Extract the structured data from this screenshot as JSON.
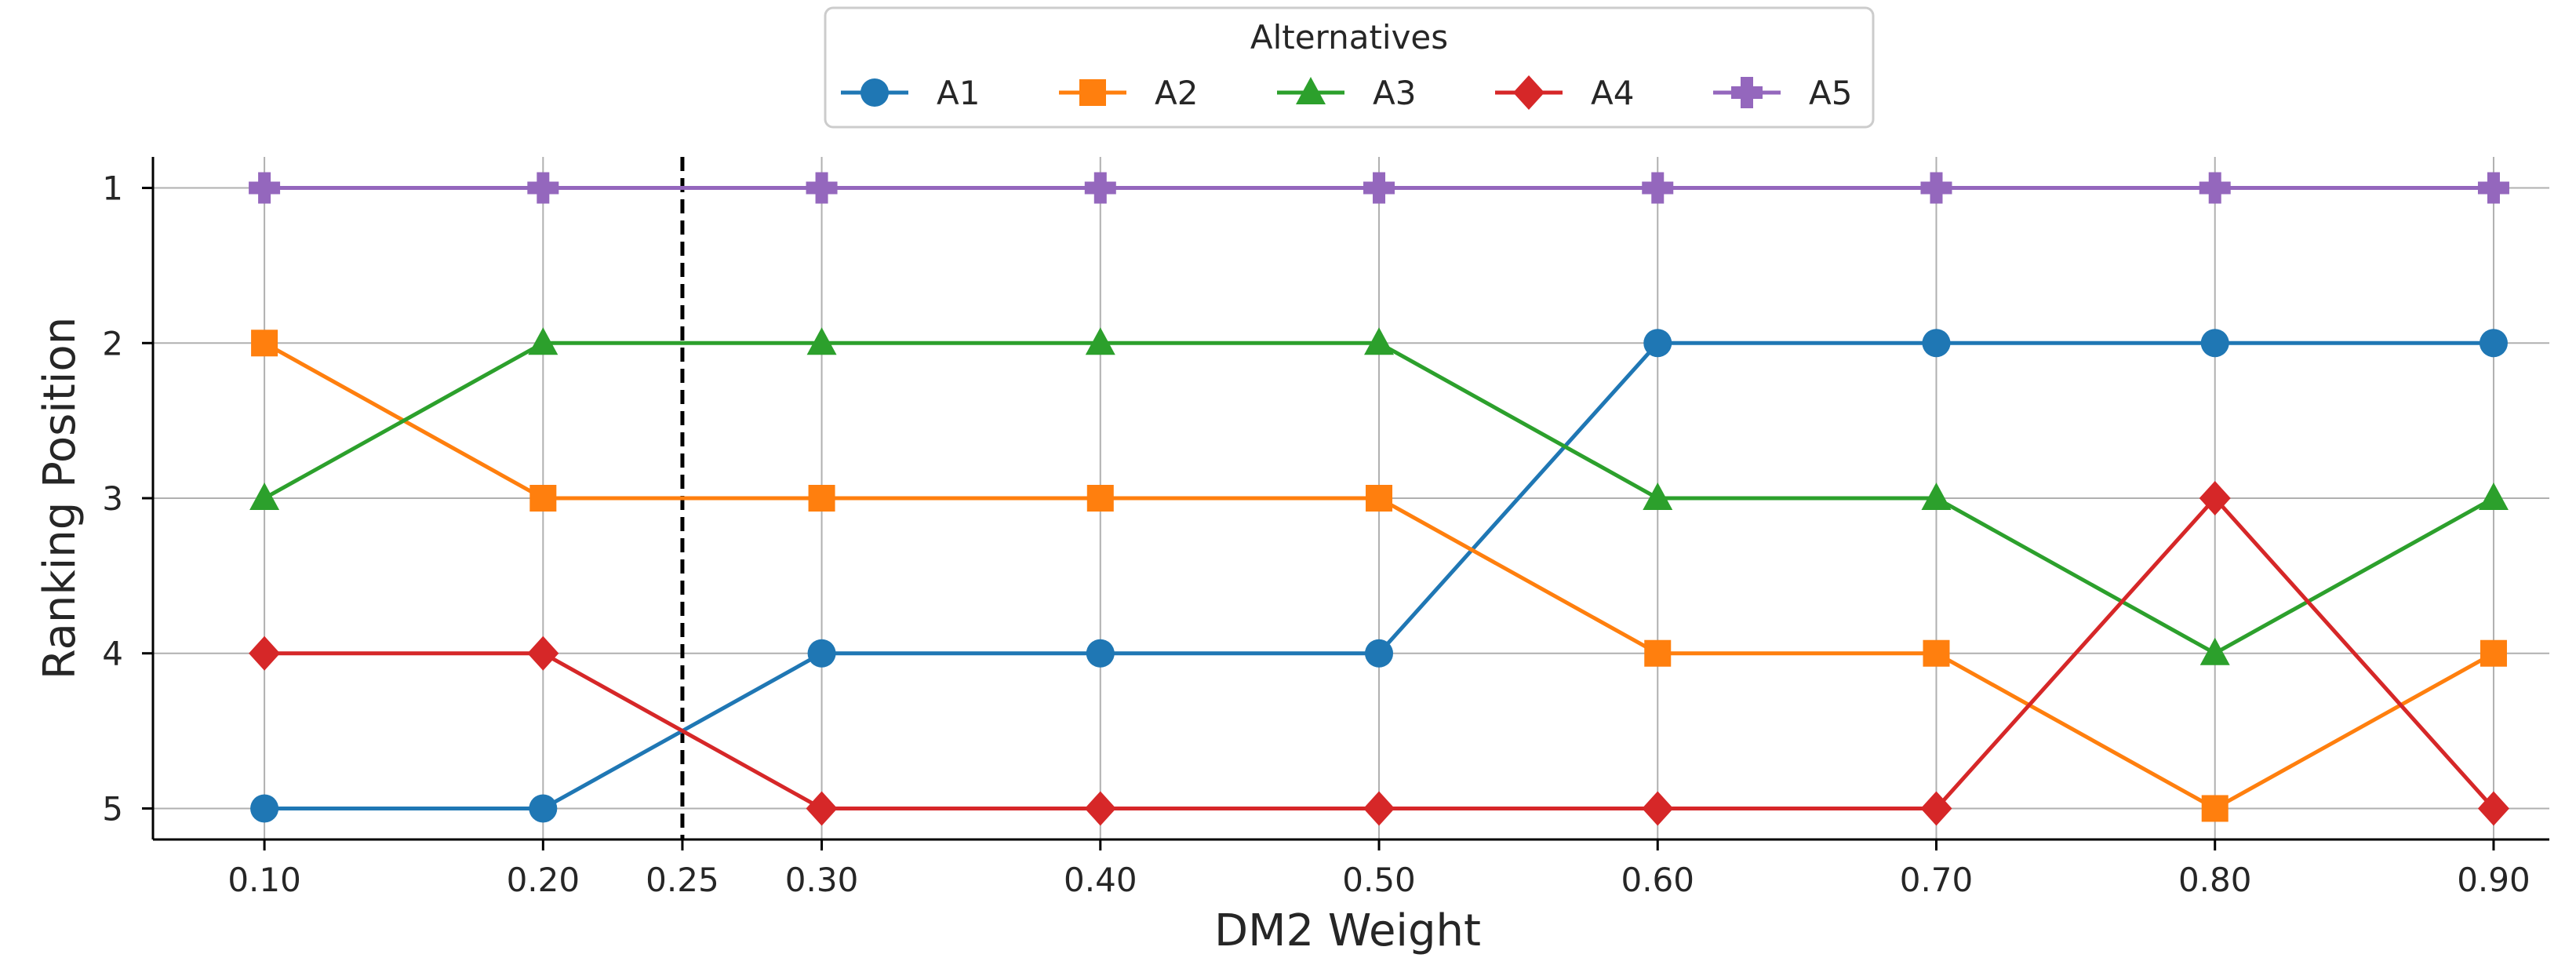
{
  "chart_data": {
    "type": "line",
    "title": "",
    "xlabel": "DM2 Weight",
    "ylabel": "Ranking Position",
    "x": [
      0.1,
      0.2,
      0.3,
      0.4,
      0.5,
      0.6,
      0.7,
      0.8,
      0.9
    ],
    "x_ticks": [
      0.1,
      0.2,
      0.25,
      0.3,
      0.4,
      0.5,
      0.6,
      0.7,
      0.8,
      0.9
    ],
    "x_tick_labels": [
      "0.10",
      "0.20",
      "0.25",
      "0.30",
      "0.40",
      "0.50",
      "0.60",
      "0.70",
      "0.80",
      "0.90"
    ],
    "xlim": [
      0.06,
      0.92
    ],
    "y_ticks": [
      1,
      2,
      3,
      4,
      5
    ],
    "y_tick_labels": [
      "1",
      "2",
      "3",
      "4",
      "5"
    ],
    "ylim": [
      5.2,
      0.8
    ],
    "y_inverted": true,
    "grid": true,
    "vline": {
      "x": 0.25,
      "style": "dashed",
      "color": "#000000"
    },
    "legend": {
      "title": "Alternatives",
      "placement": "top-center",
      "ncol": 5
    },
    "series": [
      {
        "name": "A1",
        "color": "#1f77b4",
        "marker": "circle",
        "values": [
          5,
          5,
          4,
          4,
          4,
          2,
          2,
          2,
          2
        ]
      },
      {
        "name": "A2",
        "color": "#ff7f0e",
        "marker": "square",
        "values": [
          2,
          3,
          3,
          3,
          3,
          4,
          4,
          5,
          4
        ]
      },
      {
        "name": "A3",
        "color": "#2ca02c",
        "marker": "triangle",
        "values": [
          3,
          2,
          2,
          2,
          2,
          3,
          3,
          4,
          3
        ]
      },
      {
        "name": "A4",
        "color": "#d62728",
        "marker": "diamond",
        "values": [
          4,
          4,
          5,
          5,
          5,
          5,
          5,
          3,
          5
        ]
      },
      {
        "name": "A5",
        "color": "#9467bd",
        "marker": "plus",
        "values": [
          1,
          1,
          1,
          1,
          1,
          1,
          1,
          1,
          1
        ]
      }
    ]
  }
}
